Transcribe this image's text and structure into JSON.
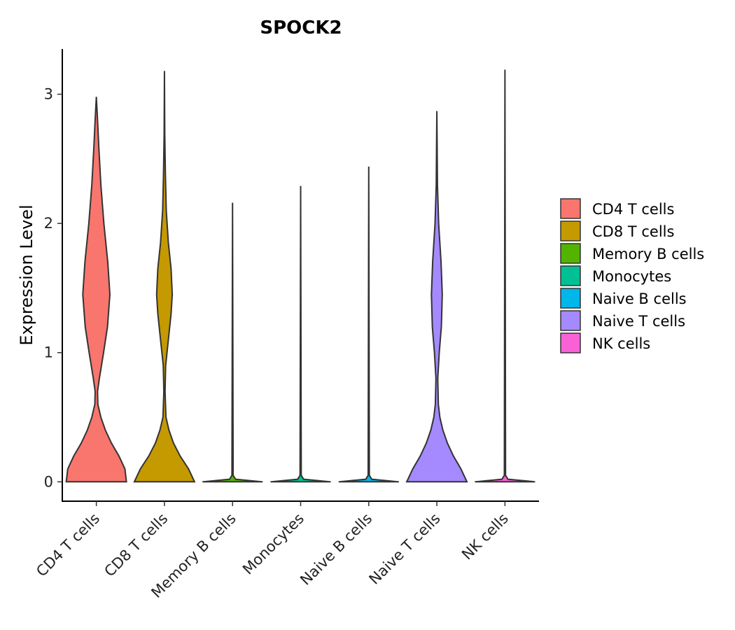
{
  "chart_data": {
    "type": "violin",
    "title": "SPOCK2",
    "xlabel": "",
    "ylabel": "Expression Level",
    "ylim": [
      -0.15,
      3.35
    ],
    "yticks": [
      0,
      1,
      2,
      3
    ],
    "legend_position": "right",
    "categories": [
      "CD4 T cells",
      "CD8 T cells",
      "Memory B cells",
      "Monocytes",
      "Naive B cells",
      "Naive T cells",
      "NK cells"
    ],
    "colors": [
      "#F8766D",
      "#C49A00",
      "#53B400",
      "#00C094",
      "#00B6EB",
      "#A58AFF",
      "#FB61D7"
    ],
    "series": [
      {
        "name": "CD4 T cells",
        "max": 2.98,
        "density": [
          [
            0,
            1.0
          ],
          [
            0.1,
            0.95
          ],
          [
            0.2,
            0.75
          ],
          [
            0.3,
            0.5
          ],
          [
            0.4,
            0.3
          ],
          [
            0.5,
            0.15
          ],
          [
            0.6,
            0.05
          ],
          [
            0.7,
            0.04
          ],
          [
            0.8,
            0.1
          ],
          [
            1.0,
            0.24
          ],
          [
            1.2,
            0.37
          ],
          [
            1.45,
            0.45
          ],
          [
            1.7,
            0.38
          ],
          [
            2.0,
            0.25
          ],
          [
            2.3,
            0.15
          ],
          [
            2.6,
            0.08
          ],
          [
            2.8,
            0.04
          ],
          [
            2.98,
            0.0
          ]
        ]
      },
      {
        "name": "CD8 T cells",
        "max": 3.18,
        "density": [
          [
            0,
            1.0
          ],
          [
            0.1,
            0.8
          ],
          [
            0.2,
            0.52
          ],
          [
            0.3,
            0.3
          ],
          [
            0.4,
            0.15
          ],
          [
            0.5,
            0.05
          ],
          [
            0.7,
            0.02
          ],
          [
            0.9,
            0.04
          ],
          [
            1.1,
            0.13
          ],
          [
            1.3,
            0.22
          ],
          [
            1.45,
            0.26
          ],
          [
            1.65,
            0.22
          ],
          [
            1.85,
            0.13
          ],
          [
            2.1,
            0.06
          ],
          [
            2.4,
            0.03
          ],
          [
            2.7,
            0.01
          ],
          [
            3.18,
            0.0
          ]
        ]
      },
      {
        "name": "Memory B cells",
        "max": 2.16,
        "density": [
          [
            0,
            1.0
          ],
          [
            0.02,
            0.1
          ],
          [
            0.05,
            0.02
          ],
          [
            2.16,
            0.0
          ]
        ]
      },
      {
        "name": "Monocytes",
        "max": 2.29,
        "density": [
          [
            0,
            1.0
          ],
          [
            0.02,
            0.1
          ],
          [
            0.05,
            0.02
          ],
          [
            2.29,
            0.0
          ]
        ]
      },
      {
        "name": "Naive B cells",
        "max": 2.44,
        "density": [
          [
            0,
            1.0
          ],
          [
            0.02,
            0.1
          ],
          [
            0.05,
            0.02
          ],
          [
            2.44,
            0.0
          ]
        ]
      },
      {
        "name": "Naive T cells",
        "max": 2.87,
        "density": [
          [
            0,
            1.0
          ],
          [
            0.1,
            0.8
          ],
          [
            0.2,
            0.55
          ],
          [
            0.3,
            0.35
          ],
          [
            0.4,
            0.2
          ],
          [
            0.5,
            0.1
          ],
          [
            0.6,
            0.05
          ],
          [
            0.8,
            0.03
          ],
          [
            1.0,
            0.08
          ],
          [
            1.2,
            0.15
          ],
          [
            1.45,
            0.18
          ],
          [
            1.7,
            0.14
          ],
          [
            2.0,
            0.06
          ],
          [
            2.3,
            0.02
          ],
          [
            2.6,
            0.01
          ],
          [
            2.87,
            0.0
          ]
        ]
      },
      {
        "name": "NK cells",
        "max": 3.19,
        "density": [
          [
            0,
            1.0
          ],
          [
            0.02,
            0.1
          ],
          [
            0.05,
            0.02
          ],
          [
            3.19,
            0.0
          ]
        ]
      }
    ],
    "legend": {
      "entries": [
        "CD4 T cells",
        "CD8 T cells",
        "Memory B cells",
        "Monocytes",
        "Naive B cells",
        "Naive T cells",
        "NK cells"
      ]
    }
  }
}
